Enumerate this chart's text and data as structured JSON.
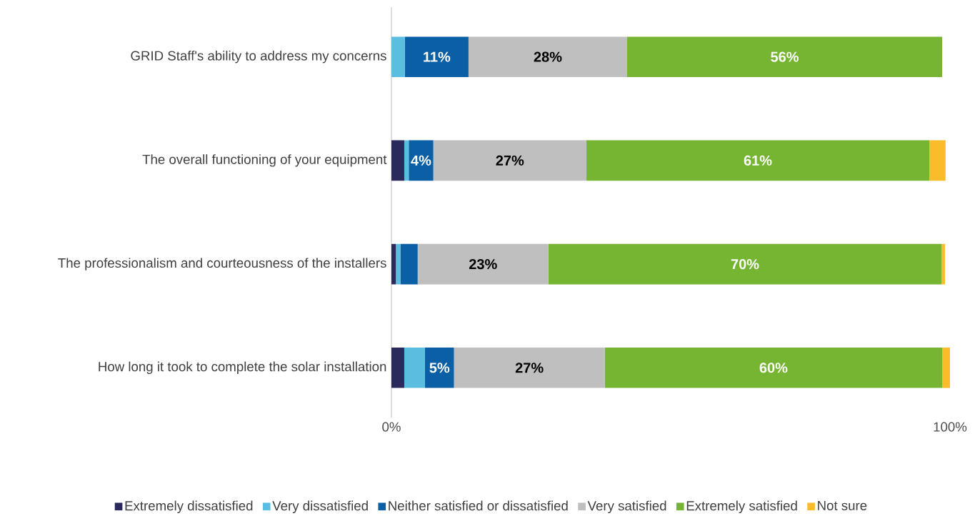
{
  "chart_data": {
    "type": "bar",
    "orientation": "horizontal",
    "stacked": true,
    "categories": [
      "GRID Staff's ability to address my concerns",
      "The overall functioning of your equipment",
      "The professionalism and courteousness of the installers",
      "How long it took to complete the solar installation"
    ],
    "series": [
      {
        "name": "Extremely dissatisfied",
        "color": "#2b2a5c",
        "values": [
          0,
          2.3,
          0.8,
          2.3
        ]
      },
      {
        "name": "Very dissatisfied",
        "color": "#5bbde0",
        "values": [
          2.4,
          0.8,
          0.8,
          3.7
        ]
      },
      {
        "name": "Neither satisfied or dissatisfied",
        "color": "#0b5fa5",
        "values": [
          11.4,
          4.4,
          3.1,
          5.2
        ],
        "value_labels": [
          "11%",
          "4%",
          null,
          "5%"
        ]
      },
      {
        "name": "Very satisfied",
        "color": "#bfbfbf",
        "values": [
          28.4,
          27.4,
          23.4,
          27.0
        ],
        "value_labels": [
          "28%",
          "27%",
          "23%",
          "27%"
        ]
      },
      {
        "name": "Extremely satisfied",
        "color": "#76b531",
        "values": [
          56.4,
          61.4,
          70.4,
          60.4
        ],
        "value_labels": [
          "56%",
          "61%",
          "70%",
          "60%"
        ]
      },
      {
        "name": "Not sure",
        "color": "#fbbc2b",
        "values": [
          0,
          2.9,
          0.6,
          1.4
        ]
      }
    ],
    "xlim": [
      0,
      100
    ],
    "xticks": [
      {
        "value": 0,
        "label": "0%"
      },
      {
        "value": 100,
        "label": "100%"
      }
    ],
    "grid": false,
    "legend": "bottom"
  }
}
